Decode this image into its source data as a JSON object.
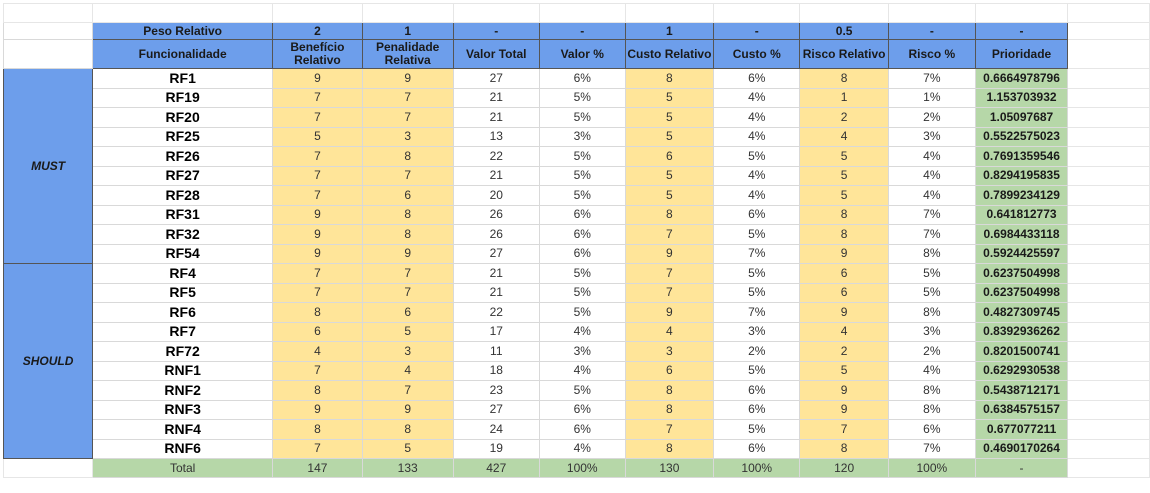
{
  "weights": {
    "label": "Peso Relativo",
    "values": [
      "2",
      "1",
      "-",
      "-",
      "1",
      "-",
      "0.5",
      "-",
      "-"
    ]
  },
  "columns": [
    "Funcionalidade",
    "Benefício Relativo",
    "Penalidade Relativa",
    "Valor Total",
    "Valor %",
    "Custo Relativo",
    "Custo %",
    "Risco Relativo",
    "Risco %",
    "Prioridade"
  ],
  "groups": [
    {
      "label": "MUST",
      "rows": [
        {
          "id": "RF1",
          "beneficio": "9",
          "penalidade": "9",
          "valor_total": "27",
          "valor_pct": "6%",
          "custo": "8",
          "custo_pct": "6%",
          "risco": "8",
          "risco_pct": "7%",
          "prioridade": "0.6664978796"
        },
        {
          "id": "RF19",
          "beneficio": "7",
          "penalidade": "7",
          "valor_total": "21",
          "valor_pct": "5%",
          "custo": "5",
          "custo_pct": "4%",
          "risco": "1",
          "risco_pct": "1%",
          "prioridade": "1.153703932"
        },
        {
          "id": "RF20",
          "beneficio": "7",
          "penalidade": "7",
          "valor_total": "21",
          "valor_pct": "5%",
          "custo": "5",
          "custo_pct": "4%",
          "risco": "2",
          "risco_pct": "2%",
          "prioridade": "1.05097687"
        },
        {
          "id": "RF25",
          "beneficio": "5",
          "penalidade": "3",
          "valor_total": "13",
          "valor_pct": "3%",
          "custo": "5",
          "custo_pct": "4%",
          "risco": "4",
          "risco_pct": "3%",
          "prioridade": "0.5522575023"
        },
        {
          "id": "RF26",
          "beneficio": "7",
          "penalidade": "8",
          "valor_total": "22",
          "valor_pct": "5%",
          "custo": "6",
          "custo_pct": "5%",
          "risco": "5",
          "risco_pct": "4%",
          "prioridade": "0.7691359546"
        },
        {
          "id": "RF27",
          "beneficio": "7",
          "penalidade": "7",
          "valor_total": "21",
          "valor_pct": "5%",
          "custo": "5",
          "custo_pct": "4%",
          "risco": "5",
          "risco_pct": "4%",
          "prioridade": "0.8294195835"
        },
        {
          "id": "RF28",
          "beneficio": "7",
          "penalidade": "6",
          "valor_total": "20",
          "valor_pct": "5%",
          "custo": "5",
          "custo_pct": "4%",
          "risco": "5",
          "risco_pct": "4%",
          "prioridade": "0.7899234129"
        },
        {
          "id": "RF31",
          "beneficio": "9",
          "penalidade": "8",
          "valor_total": "26",
          "valor_pct": "6%",
          "custo": "8",
          "custo_pct": "6%",
          "risco": "8",
          "risco_pct": "7%",
          "prioridade": "0.641812773"
        },
        {
          "id": "RF32",
          "beneficio": "9",
          "penalidade": "8",
          "valor_total": "26",
          "valor_pct": "6%",
          "custo": "7",
          "custo_pct": "5%",
          "risco": "8",
          "risco_pct": "7%",
          "prioridade": "0.6984433118"
        },
        {
          "id": "RF54",
          "beneficio": "9",
          "penalidade": "9",
          "valor_total": "27",
          "valor_pct": "6%",
          "custo": "9",
          "custo_pct": "7%",
          "risco": "9",
          "risco_pct": "8%",
          "prioridade": "0.5924425597"
        }
      ]
    },
    {
      "label": "SHOULD",
      "rows": [
        {
          "id": "RF4",
          "beneficio": "7",
          "penalidade": "7",
          "valor_total": "21",
          "valor_pct": "5%",
          "custo": "7",
          "custo_pct": "5%",
          "risco": "6",
          "risco_pct": "5%",
          "prioridade": "0.6237504998"
        },
        {
          "id": "RF5",
          "beneficio": "7",
          "penalidade": "7",
          "valor_total": "21",
          "valor_pct": "5%",
          "custo": "7",
          "custo_pct": "5%",
          "risco": "6",
          "risco_pct": "5%",
          "prioridade": "0.6237504998"
        },
        {
          "id": "RF6",
          "beneficio": "8",
          "penalidade": "6",
          "valor_total": "22",
          "valor_pct": "5%",
          "custo": "9",
          "custo_pct": "7%",
          "risco": "9",
          "risco_pct": "8%",
          "prioridade": "0.4827309745"
        },
        {
          "id": "RF7",
          "beneficio": "6",
          "penalidade": "5",
          "valor_total": "17",
          "valor_pct": "4%",
          "custo": "4",
          "custo_pct": "3%",
          "risco": "4",
          "risco_pct": "3%",
          "prioridade": "0.8392936262"
        },
        {
          "id": "RF72",
          "beneficio": "4",
          "penalidade": "3",
          "valor_total": "11",
          "valor_pct": "3%",
          "custo": "3",
          "custo_pct": "2%",
          "risco": "2",
          "risco_pct": "2%",
          "prioridade": "0.8201500741"
        },
        {
          "id": "RNF1",
          "beneficio": "7",
          "penalidade": "4",
          "valor_total": "18",
          "valor_pct": "4%",
          "custo": "6",
          "custo_pct": "5%",
          "risco": "5",
          "risco_pct": "4%",
          "prioridade": "0.6292930538"
        },
        {
          "id": "RNF2",
          "beneficio": "8",
          "penalidade": "7",
          "valor_total": "23",
          "valor_pct": "5%",
          "custo": "8",
          "custo_pct": "6%",
          "risco": "9",
          "risco_pct": "8%",
          "prioridade": "0.5438712171"
        },
        {
          "id": "RNF3",
          "beneficio": "9",
          "penalidade": "9",
          "valor_total": "27",
          "valor_pct": "6%",
          "custo": "8",
          "custo_pct": "6%",
          "risco": "9",
          "risco_pct": "8%",
          "prioridade": "0.6384575157"
        },
        {
          "id": "RNF4",
          "beneficio": "8",
          "penalidade": "8",
          "valor_total": "24",
          "valor_pct": "6%",
          "custo": "7",
          "custo_pct": "5%",
          "risco": "7",
          "risco_pct": "6%",
          "prioridade": "0.677077211"
        },
        {
          "id": "RNF6",
          "beneficio": "7",
          "penalidade": "5",
          "valor_total": "19",
          "valor_pct": "4%",
          "custo": "8",
          "custo_pct": "6%",
          "risco": "8",
          "risco_pct": "7%",
          "prioridade": "0.4690170264"
        }
      ]
    }
  ],
  "total": {
    "label": "Total",
    "values": [
      "147",
      "133",
      "427",
      "100%",
      "130",
      "100%",
      "120",
      "100%",
      "-"
    ]
  },
  "colors": {
    "header_blue": "#6d9eeb",
    "input_yellow": "#ffe599",
    "priority_green": "#b6d7a8"
  }
}
